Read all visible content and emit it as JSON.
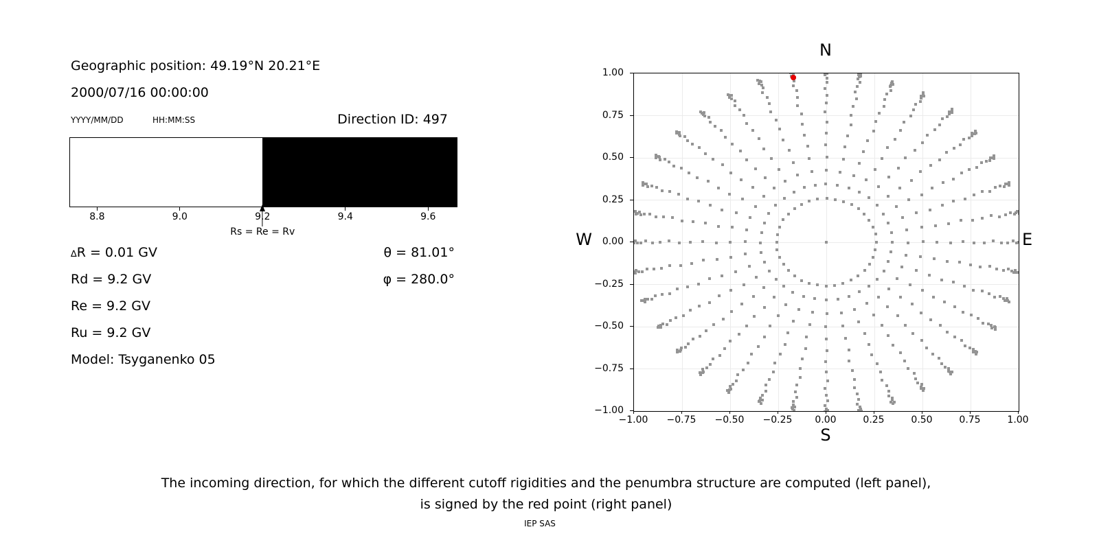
{
  "left_panel": {
    "geo_position": "Geographic position: 49.19°N 20.21°E",
    "datetime": "2000/07/16 00:00:00",
    "date_format_label": "YYYY/MM/DD",
    "time_format_label": "HH:MM:SS",
    "direction_id": "Direction ID: 497",
    "delta_symbol": "∆",
    "delta_r": "R = 0.01 GV",
    "rows": [
      "Rd = 9.2 GV",
      "Re = 9.2 GV",
      "Ru = 9.2 GV",
      "Model: Tsyganenko 05"
    ],
    "theta": "θ = 81.01°",
    "phi": "φ = 280.0°"
  },
  "caption": {
    "line1": "The incoming direction, for which the different cutoff rigidities and the penumbra structure are computed (left panel),",
    "line2": "is signed by the red point (right panel)",
    "credit": "IEP SAS"
  },
  "chart_data": [
    {
      "type": "bar",
      "name": "penumbra-structure-bar",
      "x_min": 8.733,
      "x_max": 9.671,
      "allowed_white_until": 9.2,
      "forbidden_black_from": 9.2,
      "tick_values": [
        8.8,
        9.0,
        9.2,
        9.4,
        9.6
      ],
      "tick_labels": [
        "8.8",
        "9.0",
        "9.2",
        "9.4",
        "9.6"
      ],
      "annotation": "Rs = Re = Rv",
      "annotation_x": 9.2,
      "white_color": "#ffffff",
      "black_color": "#000000"
    },
    {
      "type": "scatter",
      "name": "asymptotic-directions-map",
      "xlim": [
        -1,
        1
      ],
      "ylim": [
        -1,
        1
      ],
      "xtick_values": [
        -1,
        -0.75,
        -0.5,
        -0.25,
        0,
        0.25,
        0.5,
        0.75,
        1
      ],
      "xtick_labels": [
        "−1.00",
        "−0.75",
        "−0.50",
        "−0.25",
        "0.00",
        "0.25",
        "0.50",
        "0.75",
        "1.00"
      ],
      "ytick_values": [
        1,
        0.75,
        0.5,
        0.25,
        0,
        -0.25,
        -0.5,
        -0.75,
        -1
      ],
      "ytick_labels": [
        "1.00",
        "0.75",
        "0.50",
        "0.25",
        "0.00",
        "−0.25",
        "−0.50",
        "−0.75",
        "−1.00"
      ],
      "north_label": "N",
      "south_label": "S",
      "west_label": "W",
      "east_label": "E",
      "grid_on": true,
      "grid_color": "#ebebeb",
      "dot_color": "#949494",
      "azimuth_start_deg": 0,
      "azimuth_step_deg": 10,
      "azimuth_count": 36,
      "ray_radii": [
        0.259,
        0.342,
        0.423,
        0.5,
        0.574,
        0.643,
        0.707,
        0.766,
        0.819,
        0.866,
        0.906,
        0.94,
        0.966,
        0.985,
        0.996,
        1.003,
        1.01,
        1.017
      ],
      "center_dot": true,
      "red_point": {
        "azimuth_deg": 350,
        "radius": 0.991,
        "color": "#e60000"
      }
    }
  ]
}
